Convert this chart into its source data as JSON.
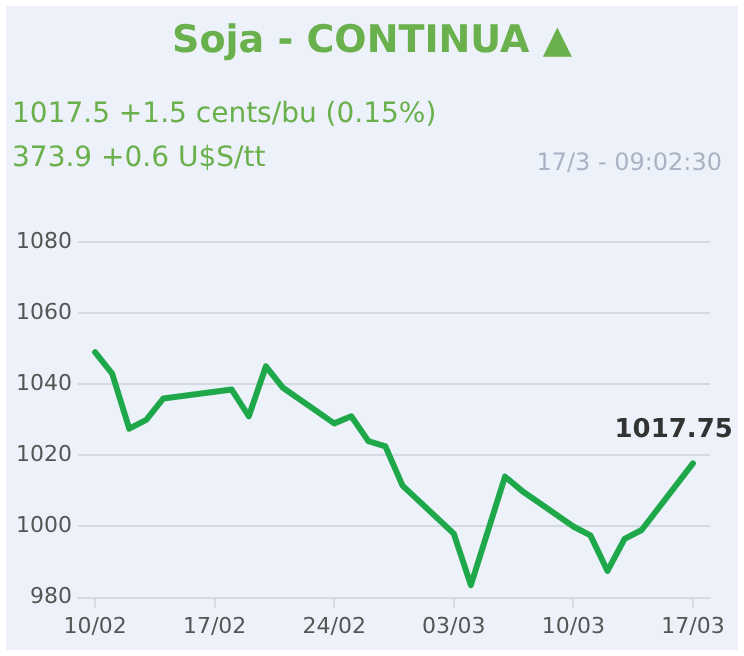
{
  "chart_data": {
    "type": "line",
    "title": "Soja - CONTINUA ▲",
    "subtitle": "1017.5 +1.5 cents/bu (0.15%)",
    "annotations": [
      "373.9 +0.6 U$S/tt",
      "17/3 - 09:02:30",
      {
        "text": "1017.75",
        "x": "--03-17",
        "y": 1017.75
      }
    ],
    "x": [
      "--02-10",
      "--02-11",
      "--02-12",
      "--02-13",
      "--02-14",
      "--02-18",
      "--02-19",
      "--02-20",
      "--02-21",
      "--02-24",
      "--02-25",
      "--02-26",
      "--02-27",
      "--02-28",
      "--03-03",
      "--03-04",
      "--03-06",
      "--03-07",
      "--03-10",
      "--03-11",
      "--03-12",
      "--03-13",
      "--03-14",
      "--03-17"
    ],
    "series": [
      {
        "color": "#1ea84a",
        "values": [
          1049,
          1043,
          1027.5,
          1030,
          1036,
          1038.5,
          1031,
          1045,
          1039,
          1029,
          1031,
          1024,
          1022.5,
          1011.5,
          998,
          983.5,
          1014,
          1010,
          1000,
          997.5,
          987.5,
          996.5,
          999,
          1017.75
        ]
      }
    ],
    "xlim": [
      "--02-09",
      "--03-18"
    ],
    "xticks": [
      {
        "value": "--02-10",
        "label": "10/02"
      },
      {
        "value": "--02-17",
        "label": "17/02"
      },
      {
        "value": "--02-24",
        "label": "24/02"
      },
      {
        "value": "--03-03",
        "label": "03/03"
      },
      {
        "value": "--03-10",
        "label": "10/03"
      },
      {
        "value": "--03-17",
        "label": "17/03"
      }
    ],
    "ylim": [
      980,
      1080
    ],
    "yticks": [
      980,
      1000,
      1020,
      1040,
      1060,
      1080
    ],
    "grid": "y",
    "legend": false,
    "marker": "none",
    "line_style": "solid"
  }
}
